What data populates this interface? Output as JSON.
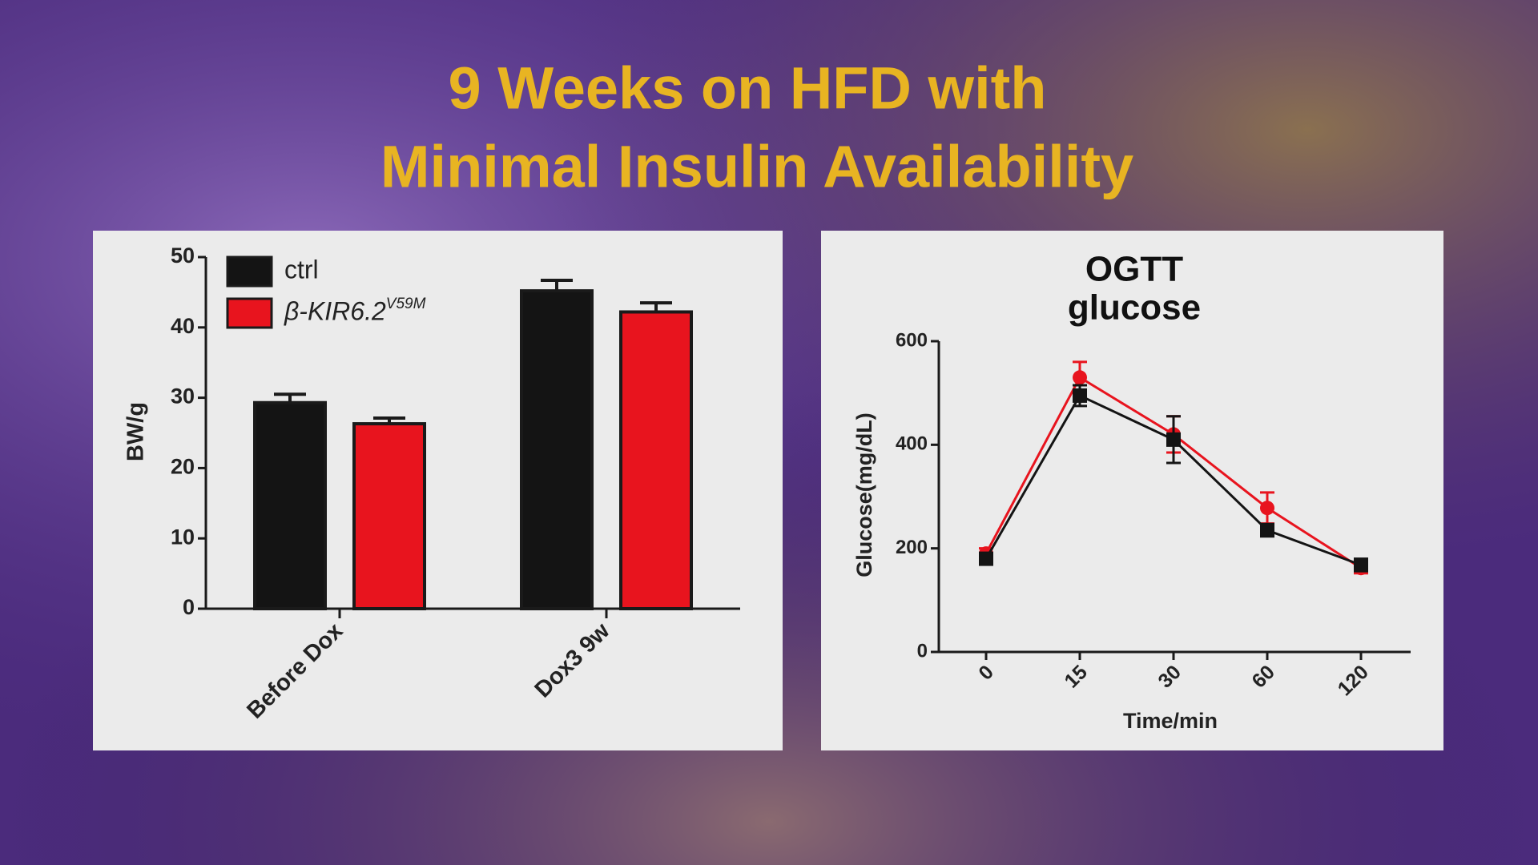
{
  "title": [
    "9 Weeks on HFD with",
    "Minimal Insulin Availability"
  ],
  "chart_data": [
    {
      "type": "bar",
      "ylabel": "BW/g",
      "categories": [
        "Before Dox",
        "Dox3 9w"
      ],
      "series": [
        {
          "name": "ctrl",
          "color": "#141414",
          "values": [
            29.3,
            45.2
          ],
          "errors": [
            1.2,
            1.5
          ]
        },
        {
          "name": "β-KIR6.2",
          "name_sup": "V59M",
          "color": "#e8141e",
          "values": [
            26.3,
            42.2
          ],
          "errors": [
            0.8,
            1.3
          ]
        }
      ],
      "ylim": [
        0,
        50
      ],
      "yticks": [
        0,
        10,
        20,
        30,
        40,
        50
      ],
      "legend": "upper-left"
    },
    {
      "type": "line",
      "title": [
        "OGTT",
        "glucose"
      ],
      "xlabel": "Time/min",
      "ylabel": "Glucose(mg/dL)",
      "categories": [
        "0",
        "15",
        "30",
        "60",
        "120"
      ],
      "series": [
        {
          "name": "ctrl",
          "color": "#141414",
          "marker": "square",
          "values": [
            180,
            495,
            410,
            235,
            168
          ],
          "errors": [
            10,
            20,
            45,
            12,
            12
          ]
        },
        {
          "name": "β-KIR6.2",
          "color": "#e8141e",
          "marker": "circle",
          "values": [
            190,
            530,
            420,
            278,
            162
          ],
          "errors": [
            10,
            30,
            35,
            30,
            10
          ]
        }
      ],
      "ylim": [
        0,
        600
      ],
      "yticks": [
        0,
        200,
        400,
        600
      ]
    }
  ]
}
